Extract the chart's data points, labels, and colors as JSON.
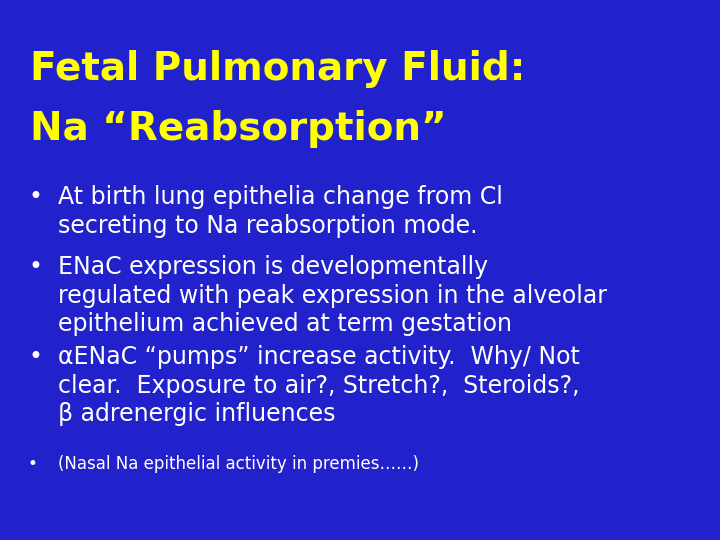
{
  "background_color": "#2222CC",
  "title_line1": "Fetal Pulmonary Fluid:",
  "title_line2": "Na “Reabsorption”",
  "title_color": "#FFFF00",
  "title_fontsize": 28,
  "bullet_color": "#FFFFFF",
  "bullet_font": "DejaVu Sans",
  "bullets": [
    "At birth lung epithelia change from Cl\nsecreting to Na reabsorption mode.",
    "ENaC expression is developmentally\nregulated with peak expression in the alveolar\nepithelium achieved at term gestation",
    "αENaC “pumps” increase activity.  Why/ Not\nclear.  Exposure to air?, Stretch?,  Steroids?,\nβ adrenergic influences",
    "(Nasal Na epithelial activity in premies……)"
  ],
  "bullet_fontsizes": [
    17,
    17,
    17,
    12
  ],
  "figsize": [
    7.2,
    5.4
  ],
  "dpi": 100
}
